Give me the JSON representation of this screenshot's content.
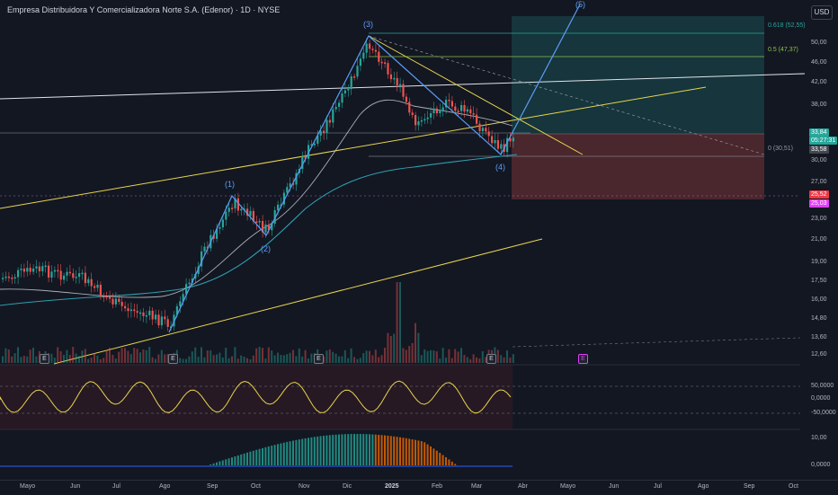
{
  "header": {
    "title": "Empresa Distribuidora Y Comercializadora Norte S.A. (Edenor) · 1D · NYSE",
    "currency": "USD"
  },
  "price_axis": {
    "ticks": [
      "50,00",
      "46,00",
      "42,00",
      "38,00",
      "33,84",
      "05:27:31",
      "33,58",
      "30,00",
      "27,00",
      "25,52",
      "25,03",
      "23,00",
      "21,00",
      "19,00",
      "17,50",
      "16,00",
      "14,80",
      "13,60",
      "12,60"
    ]
  },
  "last_price": {
    "price": "33,84",
    "countdown": "05:27:31",
    "color": "#26a69a"
  },
  "prev_close": {
    "price": "33,58"
  },
  "stop_tags": [
    {
      "price": "25,52",
      "color": "#f23645"
    },
    {
      "price": "25,03",
      "color": "#e040fb"
    }
  ],
  "fib": [
    {
      "label": "0.618 (52,55)",
      "color": "#26a69a"
    },
    {
      "label": "0.5 (47,37)",
      "color": "#8bc34a"
    },
    {
      "label": "0 (30,51)",
      "color": "#787b86"
    }
  ],
  "waves": [
    "(1)",
    "(2)",
    "(3)",
    "(4)",
    "(5)"
  ],
  "oscillator": {
    "ticks": [
      "50,0000",
      "0,0000",
      "-50,0000"
    ]
  },
  "macd": {
    "ticks": [
      "10,00",
      "0,0000"
    ]
  },
  "events": [
    "E",
    "E",
    "E",
    "E",
    "E"
  ],
  "time_axis": [
    "Mayo",
    "Jun",
    "Jul",
    "Ago",
    "Sep",
    "Oct",
    "Nov",
    "Dic",
    "2025",
    "Feb",
    "Mar",
    "Abr",
    "Mayo",
    "Jun",
    "Jul",
    "Ago",
    "Sep",
    "Oct"
  ],
  "colors": {
    "up": "#26a69a",
    "down": "#ef5350",
    "trendline": "#e8d44d",
    "ema": "#2e9fb0",
    "wave": "#5b9cf6"
  }
}
